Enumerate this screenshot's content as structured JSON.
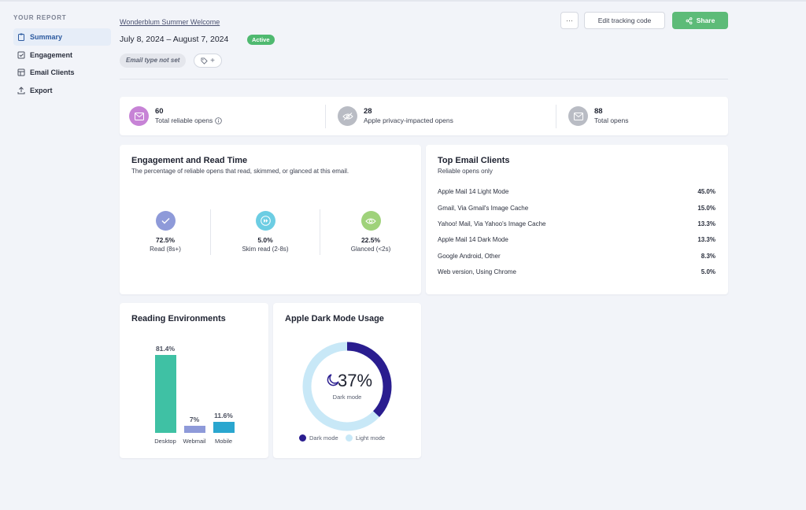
{
  "sidebar": {
    "title": "YOUR REPORT",
    "items": [
      {
        "label": "Summary",
        "icon": "clipboard-icon",
        "active": true
      },
      {
        "label": "Engagement",
        "icon": "checkbox-icon"
      },
      {
        "label": "Email Clients",
        "icon": "table-icon"
      },
      {
        "label": "Export",
        "icon": "upload-icon"
      }
    ]
  },
  "header": {
    "campaign": "Wonderblum Summer Welcome",
    "date_range": "July 8, 2024  –  August 7, 2024",
    "status": "Active",
    "email_type": "Email type not set",
    "tag_plus": "+",
    "more": "···",
    "edit_label": "Edit tracking code",
    "share_label": "Share"
  },
  "stats": [
    {
      "value": "60",
      "label": "Total reliable opens",
      "color": "#c783d6",
      "icon": "mail-icon"
    },
    {
      "value": "28",
      "label": "Apple privacy-impacted opens",
      "color": "#b9bcc4",
      "icon": "eye-off-icon"
    },
    {
      "value": "88",
      "label": "Total opens",
      "color": "#b9bcc4",
      "icon": "mail-icon"
    }
  ],
  "engagement": {
    "title": "Engagement and Read Time",
    "subtitle": "The percentage of reliable opens that read, skimmed, or glanced at this email.",
    "items": [
      {
        "value": "72.5%",
        "label": "Read (8s+)",
        "color": "#8e9ad9",
        "icon": "check-icon"
      },
      {
        "value": "5.0%",
        "label": "Skim read (2-8s)",
        "color": "#6ccde3",
        "icon": "fast-forward-icon"
      },
      {
        "value": "22.5%",
        "label": "Glanced (<2s)",
        "color": "#9fd27a",
        "icon": "eye-icon"
      }
    ]
  },
  "clients": {
    "title": "Top Email Clients",
    "subtitle": "Reliable opens only",
    "rows": [
      {
        "name": "Apple Mail 14 Light Mode",
        "pct": "45.0%"
      },
      {
        "name": "Gmail, Via Gmail's Image Cache",
        "pct": "15.0%"
      },
      {
        "name": "Yahoo! Mail, Via Yahoo's Image Cache",
        "pct": "13.3%"
      },
      {
        "name": "Apple Mail 14 Dark Mode",
        "pct": "13.3%"
      },
      {
        "name": "Google Android, Other",
        "pct": "8.3%"
      },
      {
        "name": "Web version, Using Chrome",
        "pct": "5.0%"
      }
    ]
  },
  "environments": {
    "title": "Reading Environments",
    "bars": [
      {
        "label": "Desktop",
        "value_text": "81.4%",
        "value": 81.4,
        "color": "#3fc1a4"
      },
      {
        "label": "Webmail",
        "value_text": "7%",
        "value": 7,
        "color": "#8e9ad9"
      },
      {
        "label": "Mobile",
        "value_text": "11.6%",
        "value": 11.6,
        "color": "#2aa6cf"
      }
    ]
  },
  "dark_mode": {
    "title": "Apple Dark Mode Usage",
    "percent_text": "37%",
    "percent": 37,
    "center_label": "Dark mode",
    "dark_color": "#2a1d8f",
    "light_color": "#c8e8f7",
    "legend": [
      {
        "label": "Dark mode",
        "color": "#2a1d8f"
      },
      {
        "label": "Light mode",
        "color": "#c8e8f7"
      }
    ]
  }
}
